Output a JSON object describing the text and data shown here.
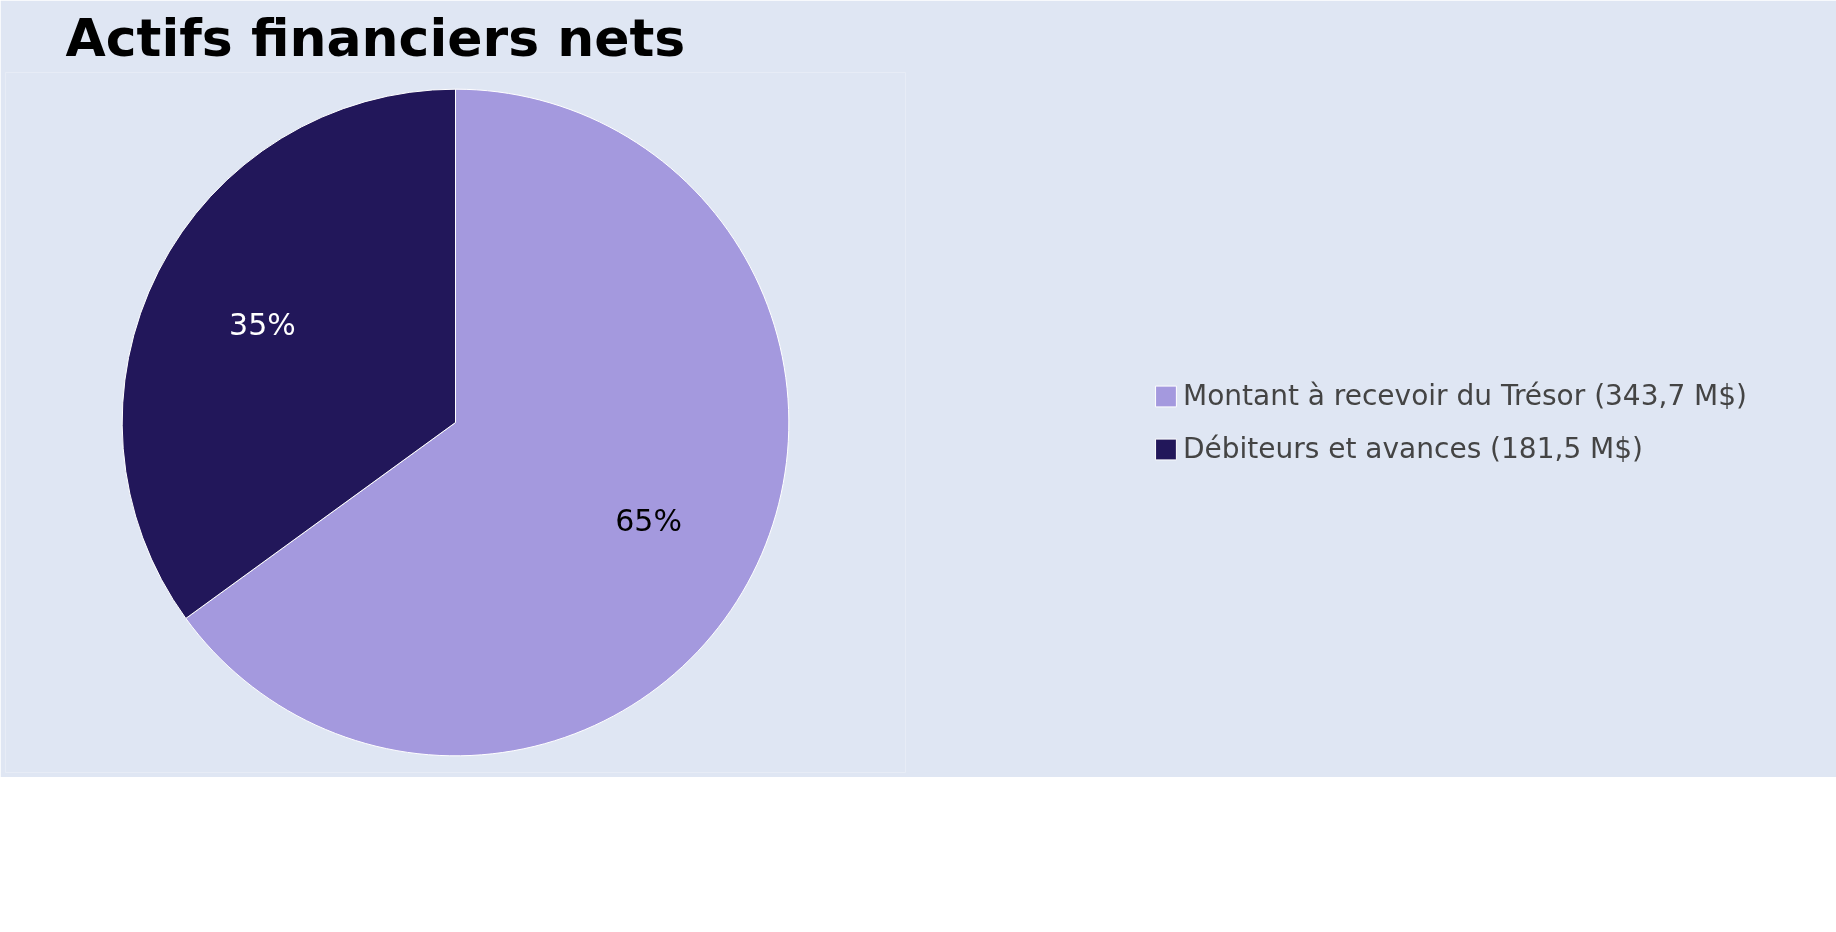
{
  "chart_data": {
    "type": "pie",
    "title": "Actifs financiers nets",
    "categories": [
      "Montant à recevoir du Trésor (343,7 M$)",
      "Débiteurs et avances (181,5 M$)"
    ],
    "values": [
      65,
      35
    ],
    "value_labels": [
      "65%",
      "35%"
    ],
    "colors": [
      "#a499de",
      "#22175a"
    ],
    "legend": "right"
  }
}
